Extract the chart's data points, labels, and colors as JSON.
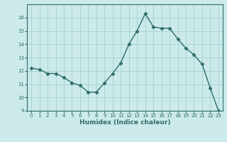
{
  "x": [
    0,
    1,
    2,
    3,
    4,
    5,
    6,
    7,
    8,
    9,
    10,
    11,
    12,
    13,
    14,
    15,
    16,
    17,
    18,
    19,
    20,
    21,
    22,
    23
  ],
  "y": [
    12.2,
    12.1,
    11.8,
    11.8,
    11.5,
    11.1,
    10.9,
    10.4,
    10.4,
    11.1,
    11.8,
    12.6,
    14.0,
    15.0,
    16.3,
    15.3,
    15.2,
    15.2,
    14.4,
    13.7,
    13.2,
    12.5,
    10.7,
    9.0
  ],
  "xlabel": "Humidex (Indice chaleur)",
  "xlim": [
    -0.5,
    23.5
  ],
  "ylim": [
    9,
    17
  ],
  "yticks": [
    9,
    10,
    11,
    12,
    13,
    14,
    15,
    16
  ],
  "xticks": [
    0,
    1,
    2,
    3,
    4,
    5,
    6,
    7,
    8,
    9,
    10,
    11,
    12,
    13,
    14,
    15,
    16,
    17,
    18,
    19,
    20,
    21,
    22,
    23
  ],
  "line_color": "#2e6b6b",
  "marker_color": "#2e6b6b",
  "bg_color": "#cceaea",
  "grid_color": "#aad4d4",
  "tick_label_color": "#2e6b6b",
  "axis_label_color": "#2e6b6b"
}
